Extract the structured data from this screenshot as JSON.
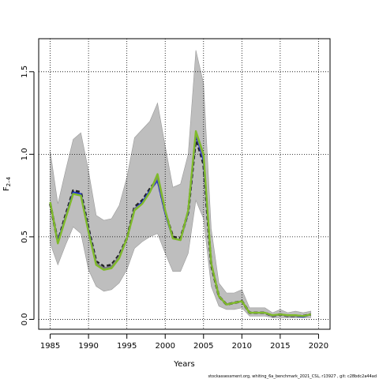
{
  "chart_data": {
    "type": "line",
    "xlabel": "Years",
    "ylabel": "F",
    "ylabel_sub": "2–4",
    "xlim": [
      1983.5,
      2021.5
    ],
    "ylim": [
      -0.06,
      1.7
    ],
    "x_ticks": [
      1985,
      1990,
      1995,
      2000,
      2005,
      2010,
      2015,
      2020
    ],
    "x_tick_labels": [
      "1985",
      "1990",
      "1995",
      "2000",
      "2005",
      "2010",
      "2015",
      "2020"
    ],
    "y_ticks": [
      0.0,
      0.5,
      1.0,
      1.5
    ],
    "y_tick_labels": [
      "0.0",
      "0.5",
      "1.0",
      "1.5"
    ],
    "grid": "dotted at ticks",
    "footer": "stockassessment.org,  whiting_6a_benchmark_2021_CSL,  r13927 ,  git:  c28bdc2a44ad",
    "x": [
      1985,
      1986,
      1987,
      1988,
      1989,
      1990,
      1991,
      1992,
      1993,
      1994,
      1995,
      1996,
      1997,
      1998,
      1999,
      2000,
      2001,
      2002,
      2003,
      2004,
      2005,
      2006,
      2007,
      2008,
      2009,
      2010,
      2011,
      2012,
      2013,
      2014,
      2015,
      2016,
      2017,
      2018,
      2019
    ],
    "band": {
      "color": "#bebebe",
      "upper": [
        1.02,
        0.7,
        0.9,
        1.09,
        1.13,
        0.9,
        0.63,
        0.6,
        0.61,
        0.69,
        0.86,
        1.1,
        1.15,
        1.2,
        1.31,
        1.05,
        0.8,
        0.82,
        1.0,
        1.63,
        1.43,
        0.55,
        0.22,
        0.16,
        0.16,
        0.18,
        0.07,
        0.07,
        0.07,
        0.04,
        0.06,
        0.04,
        0.05,
        0.04,
        0.05
      ],
      "lower": [
        0.46,
        0.33,
        0.45,
        0.56,
        0.52,
        0.3,
        0.2,
        0.17,
        0.18,
        0.22,
        0.3,
        0.43,
        0.47,
        0.5,
        0.52,
        0.4,
        0.29,
        0.29,
        0.4,
        0.72,
        0.61,
        0.2,
        0.08,
        0.06,
        0.06,
        0.07,
        0.02,
        0.02,
        0.02,
        0.01,
        0.01,
        0.01,
        0.01,
        0.01,
        0.01
      ]
    },
    "series": [
      {
        "color": "#222222",
        "dashed": true,
        "values": [
          0.7,
          0.47,
          0.63,
          0.78,
          0.77,
          0.55,
          0.35,
          0.32,
          0.33,
          0.39,
          0.49,
          0.68,
          0.72,
          0.79,
          0.85,
          0.65,
          0.5,
          0.49,
          0.65,
          1.1,
          0.94,
          0.33,
          0.14,
          0.09,
          0.1,
          0.11,
          0.04,
          0.04,
          0.04,
          0.02,
          0.03,
          0.02,
          0.02,
          0.02,
          0.03
        ]
      },
      {
        "color": "#1e2fd0",
        "dashed": false,
        "values": [
          0.71,
          0.47,
          0.62,
          0.77,
          0.76,
          0.54,
          0.34,
          0.31,
          0.32,
          0.38,
          0.49,
          0.67,
          0.71,
          0.78,
          0.84,
          0.64,
          0.49,
          0.48,
          0.65,
          1.12,
          0.96,
          0.34,
          0.14,
          0.09,
          0.1,
          0.11,
          0.04,
          0.04,
          0.04,
          0.02,
          0.03,
          0.02,
          0.02,
          0.015,
          0.03
        ]
      },
      {
        "color": "#808080",
        "dashed": false,
        "values": [
          0.71,
          0.46,
          0.62,
          0.76,
          0.75,
          0.53,
          0.34,
          0.31,
          0.32,
          0.38,
          0.49,
          0.67,
          0.7,
          0.77,
          0.86,
          0.65,
          0.49,
          0.48,
          0.66,
          1.13,
          0.98,
          0.34,
          0.14,
          0.09,
          0.1,
          0.11,
          0.04,
          0.04,
          0.04,
          0.02,
          0.03,
          0.02,
          0.02,
          0.02,
          0.03
        ]
      },
      {
        "color": "#7fba2a",
        "dashed": false,
        "values": [
          0.71,
          0.46,
          0.61,
          0.76,
          0.75,
          0.53,
          0.33,
          0.3,
          0.31,
          0.37,
          0.49,
          0.66,
          0.7,
          0.77,
          0.88,
          0.66,
          0.49,
          0.48,
          0.66,
          1.14,
          1.0,
          0.34,
          0.14,
          0.09,
          0.1,
          0.11,
          0.04,
          0.04,
          0.04,
          0.025,
          0.03,
          0.025,
          0.025,
          0.02,
          0.03
        ]
      }
    ]
  }
}
